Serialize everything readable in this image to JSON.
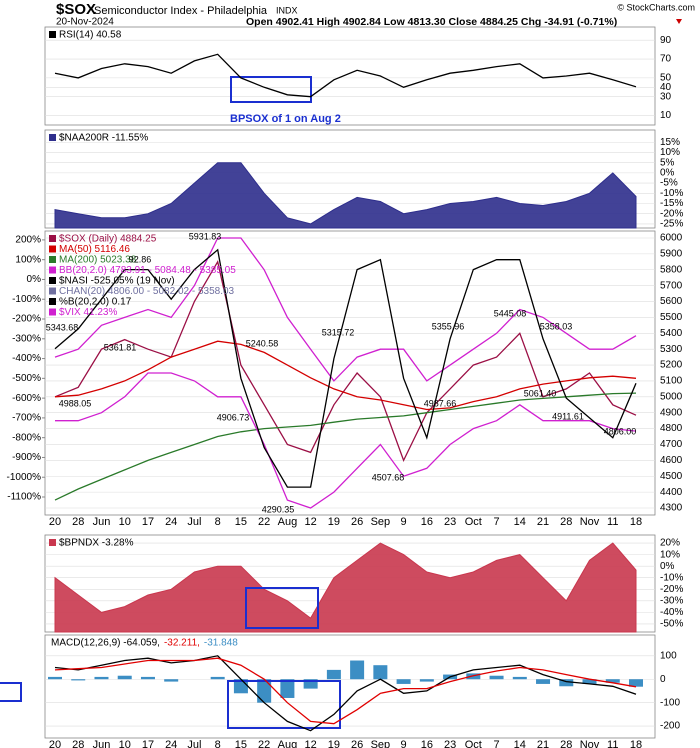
{
  "header": {
    "symbol": "$SOX",
    "name": "Semiconductor Index - Philadelphia",
    "exchange": "INDX",
    "date": "20-Nov-2024",
    "ohlc": "Open 4902.41  High 4902.84  Low 4813.30  Close 4884.25  Chg -34.91 (-0.71%)",
    "credit": "© StockCharts.com"
  },
  "chart_data": [
    {
      "type": "line",
      "annotation": "BPSOX of 1 on Aug 2",
      "ylim": [
        0,
        104
      ],
      "yticks": [
        90,
        70,
        50,
        40,
        30,
        10
      ],
      "grid": true,
      "series": [
        {
          "name": "RSI(14) 40.58",
          "color": "#000000",
          "values": [
            55,
            50,
            60,
            65,
            62,
            55,
            68,
            75,
            50,
            40,
            32,
            30,
            48,
            58,
            52,
            40,
            48,
            55,
            58,
            62,
            65,
            50,
            52,
            55,
            48,
            40.58
          ]
        }
      ]
    },
    {
      "type": "area",
      "ylim": [
        -27,
        21
      ],
      "grid": true,
      "yticks": [
        {
          "value": 15,
          "label": "15%"
        },
        {
          "value": 10,
          "label": "10%"
        },
        {
          "value": 5,
          "label": "5%"
        },
        {
          "value": 0,
          "label": "0%"
        },
        {
          "value": -5,
          "label": "-5%"
        },
        {
          "value": -10,
          "label": "-10%"
        },
        {
          "value": -15,
          "label": "-15%"
        },
        {
          "value": -20,
          "label": "-20%"
        },
        {
          "value": -25,
          "label": "-25%"
        }
      ],
      "series": [
        {
          "name": "$NAA200R -11.55%",
          "color": "#2e2e8c",
          "values": [
            -18,
            -20,
            -22,
            -22,
            -20,
            -15,
            -5,
            5,
            5,
            -10,
            -22,
            -25,
            -18,
            -12,
            -14,
            -20,
            -18,
            -15,
            -14,
            -12,
            -15,
            -16,
            -14,
            -10,
            0,
            -11.55
          ]
        }
      ]
    },
    {
      "type": "line",
      "ylim": [
        4256,
        6044
      ],
      "grid": true,
      "yticks": [
        6000,
        5900,
        5800,
        5700,
        5600,
        5500,
        5400,
        5300,
        5200,
        5100,
        5000,
        4900,
        4800,
        4700,
        4600,
        4500,
        4400,
        4300
      ],
      "y2lim": [
        -1191,
        245
      ],
      "y2ticks": [
        {
          "value": 200,
          "label": "200%"
        },
        {
          "value": 100,
          "label": "100%"
        },
        {
          "value": 0,
          "label": "0%"
        },
        {
          "value": -100,
          "label": "-100%"
        },
        {
          "value": -200,
          "label": "-200%"
        },
        {
          "value": -300,
          "label": "-300%"
        },
        {
          "value": -400,
          "label": "-400%"
        },
        {
          "value": -500,
          "label": "-500%"
        },
        {
          "value": -600,
          "label": "-600%"
        },
        {
          "value": -700,
          "label": "-700%"
        },
        {
          "value": -800,
          "label": "-800%"
        },
        {
          "value": -900,
          "label": "-900%"
        },
        {
          "value": -1000,
          "label": "-1000%"
        },
        {
          "value": -1100,
          "label": "-1100%"
        }
      ],
      "categories": [
        "20",
        "28",
        "Jun",
        "10",
        "17",
        "24",
        "Jul",
        "8",
        "15",
        "22",
        "Aug",
        "12",
        "19",
        "26",
        "Sep",
        "9",
        "16",
        "23",
        "Oct",
        "7",
        "14",
        "21",
        "28",
        "Nov",
        "11",
        "18"
      ],
      "series": [
        {
          "name": "$SOX (Daily) 4884.25",
          "color": "#9b0f45",
          "values": [
            5000,
            5060,
            5300,
            5360,
            5300,
            5250,
            5600,
            5850,
            5200,
            4950,
            4700,
            4650,
            4950,
            5150,
            5000,
            4600,
            4900,
            5050,
            5200,
            5250,
            5400,
            5000,
            5050,
            5150,
            4950,
            4884.25
          ]
        },
        {
          "name": "MA(50) 5116.46",
          "color": "#d40000",
          "values": [
            5000,
            5010,
            5050,
            5100,
            5170,
            5250,
            5300,
            5350,
            5330,
            5280,
            5200,
            5120,
            5050,
            5000,
            4980,
            4950,
            4920,
            4930,
            4970,
            5000,
            5050,
            5080,
            5100,
            5120,
            5130,
            5116.46
          ]
        },
        {
          "name": "MA(200) 5023.38",
          "color": "#2a7a2a",
          "values": [
            4350,
            4420,
            4480,
            4540,
            4600,
            4650,
            4700,
            4750,
            4780,
            4800,
            4810,
            4820,
            4840,
            4860,
            4870,
            4880,
            4900,
            4920,
            4940,
            4960,
            4980,
            4990,
            5000,
            5010,
            5020,
            5023.38
          ]
        },
        {
          "name": "BB(20,2.0) 4783.91 - 5084.48 - 5385.05",
          "color": "#d020d0",
          "values": [
            5250,
            5300,
            5450,
            5500,
            5550,
            5500,
            5700,
            6000,
            6000,
            5800,
            5500,
            5300,
            5100,
            5250,
            5300,
            5300,
            5100,
            5200,
            5300,
            5400,
            5550,
            5500,
            5400,
            5300,
            5300,
            5385.05
          ]
        },
        {
          "color": "#d020d0",
          "values": [
            4850,
            4850,
            4900,
            5000,
            5150,
            5150,
            5100,
            5000,
            5000,
            4700,
            4350,
            4300,
            4400,
            4550,
            4700,
            4500,
            4550,
            4700,
            4800,
            4850,
            4950,
            4850,
            4850,
            4850,
            4800,
            4783.91
          ]
        },
        {
          "name": "$NASI -525.05% (19 Nov)",
          "color": "#000000",
          "axis": "y2",
          "values": [
            -350,
            -250,
            -100,
            50,
            50,
            -100,
            50,
            150,
            -500,
            -850,
            -1050,
            -1050,
            -400,
            50,
            100,
            -500,
            -800,
            -300,
            50,
            100,
            100,
            -300,
            -600,
            -700,
            -800,
            -525.05
          ]
        }
      ],
      "extra_legend": [
        {
          "text": "CHAN(20) 4806.00 - 5082.02 - 5358.03",
          "color": "#7070a0"
        },
        {
          "text": "%B(20,2.0) 0.17",
          "color": "#000000"
        },
        {
          "text": "$VIX 41.23%",
          "color": "#d020d0"
        }
      ],
      "annotations": [
        "5931.83",
        "5343.68",
        "92.86",
        "5361.81",
        "5240.58",
        "4988.05",
        "4906.73",
        "4290.35",
        "5315.72",
        "4507.68",
        "5355.96",
        "5445.08",
        "4987.66",
        "5358.03",
        "5061.40",
        "4911.61",
        "4806.00"
      ]
    },
    {
      "type": "area",
      "ylim": [
        -57,
        27
      ],
      "grid": true,
      "yticks": [
        {
          "value": 20,
          "label": "20%"
        },
        {
          "value": 10,
          "label": "10%"
        },
        {
          "value": 0,
          "label": "0%"
        },
        {
          "value": -10,
          "label": "-10%"
        },
        {
          "value": -20,
          "label": "-20%"
        },
        {
          "value": -30,
          "label": "-30%"
        },
        {
          "value": -40,
          "label": "-40%"
        },
        {
          "value": -50,
          "label": "-50%"
        }
      ],
      "series": [
        {
          "name": "$BPNDX -3.28%",
          "color": "#c9374e",
          "values": [
            -10,
            -25,
            -40,
            -35,
            -25,
            -20,
            -5,
            0,
            0,
            -20,
            -30,
            -45,
            -10,
            5,
            20,
            10,
            -5,
            -10,
            -5,
            5,
            10,
            -10,
            -30,
            5,
            20,
            -3.28
          ]
        }
      ]
    },
    {
      "type": "line",
      "ylim": [
        -251,
        189
      ],
      "yticks": [
        100,
        0,
        -100,
        -200
      ],
      "grid": true,
      "legend_layout": "row",
      "categories": [
        "20",
        "28",
        "Jun",
        "10",
        "17",
        "24",
        "Jul",
        "8",
        "15",
        "22",
        "Aug",
        "12",
        "19",
        "26",
        "Sep",
        "9",
        "16",
        "23",
        "Oct",
        "7",
        "14",
        "21",
        "28",
        "Nov",
        "11",
        "18"
      ],
      "series": [
        {
          "name": "MACD(12,26,9) -64.059,",
          "color": "#000000",
          "values": [
            50,
            40,
            60,
            80,
            90,
            70,
            80,
            100,
            0,
            -100,
            -180,
            -220,
            -150,
            -50,
            0,
            -60,
            -50,
            10,
            40,
            50,
            60,
            20,
            -10,
            -20,
            -30,
            -64.059
          ]
        },
        {
          "name": "-32.211,",
          "color": "#e00000",
          "values": [
            40,
            45,
            50,
            65,
            80,
            80,
            80,
            90,
            60,
            0,
            -100,
            -180,
            -190,
            -130,
            -60,
            -40,
            -40,
            -10,
            15,
            35,
            50,
            40,
            20,
            0,
            -15,
            -32.211
          ]
        },
        {
          "name": "-31.848",
          "color": "#3c8ec4",
          "style": "bar",
          "values": [
            10,
            -5,
            10,
            15,
            10,
            -10,
            0,
            10,
            -60,
            -100,
            -80,
            -40,
            40,
            80,
            60,
            -20,
            -10,
            20,
            25,
            15,
            10,
            -20,
            -30,
            -20,
            -15,
            -31.848
          ]
        }
      ]
    }
  ]
}
